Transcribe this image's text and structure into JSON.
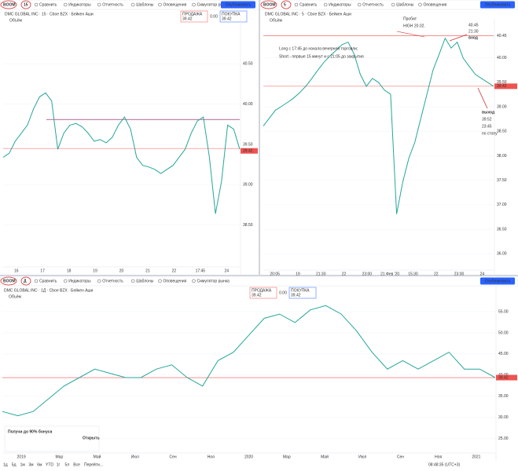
{
  "ui": {
    "panels": [
      {
        "symbol": "BOOM",
        "interval": "15",
        "tools": [
          "Сравнить",
          "Индикаторы",
          "Отчетность",
          "Шаблоны",
          "Оповещения",
          "Симулятор рынка"
        ],
        "publish": "Опубликовать",
        "header": "DMC GLOBAL INC · 15 · Cboe BZX · Бейкен Аши",
        "sell_label": "ПРОДАЖА",
        "sell": "39.42",
        "spread": "0.00",
        "buy_label": "ПОКУПКА",
        "buy": "39.42",
        "volume": "Объём"
      },
      {
        "symbol": "BOOM",
        "interval": "5",
        "tools": [
          "Сравнить",
          "Индикаторы",
          "Отчетность",
          "Шаблоны",
          "Оповещения"
        ],
        "publish": "Опубликовать",
        "header": "DMC GLOBAL INC · 5 · Cboe BZX · Бейкен Аши",
        "volume": "Объём"
      },
      {
        "symbol": "BOOM",
        "interval": "Д",
        "tools": [
          "Сравнить",
          "Индикаторы",
          "Отчетность",
          "Шаблоны",
          "Оповещения",
          "Симулятор рынка"
        ],
        "publish": "Опубликовать",
        "header": "DMC GLOBAL INC · 1Д · Cboe BZX · Бейкен Аши",
        "sell_label": "ПРОДАЖА",
        "sell": "39.42",
        "spread": "0.00",
        "buy_label": "ПОКУПКА",
        "buy": "39.42",
        "volume": "Объём"
      }
    ],
    "bottom_bar": [
      "1д",
      "5д",
      "1м",
      "3м",
      "6м",
      "YTD",
      "1г",
      "5л",
      "Все",
      "Перейти..."
    ],
    "clock": "08:48:35 (UTC+3)",
    "ad": {
      "title": "Получи до 90% бонуса",
      "button": "Открыть"
    }
  },
  "chart_data": [
    {
      "type": "line",
      "color": "#26a69a",
      "values": [
        39.34,
        39.39,
        39.54,
        39.64,
        39.74,
        39.94,
        40.09,
        40.14,
        40.04,
        39.44,
        39.64,
        39.74,
        39.76,
        39.72,
        39.64,
        39.54,
        39.56,
        39.52,
        39.59,
        39.74,
        39.84,
        39.69,
        39.34,
        39.24,
        39.22,
        39.19,
        39.14,
        39.19,
        39.24,
        39.34,
        39.44,
        39.64,
        39.79,
        39.84,
        39.34,
        38.64,
        39.04,
        39.74,
        39.69,
        39.44
      ],
      "x_labels": [
        "16",
        "17",
        "18",
        "19",
        "20",
        "21",
        "22",
        "17:45",
        "24"
      ],
      "ylim": [
        38.0,
        41.0
      ],
      "yticks": [
        {
          "value": 38.5,
          "label": "38.50"
        },
        {
          "value": 39,
          "label": "39.00"
        },
        {
          "value": 39.5,
          "label": "39.50"
        },
        {
          "value": 40,
          "label": "40.00"
        },
        {
          "value": 40.5,
          "label": "40.50"
        }
      ],
      "hlines": [
        {
          "value": 39.81,
          "color": "#880e4f"
        },
        {
          "value": 39.45,
          "color": "#ef5350"
        }
      ],
      "price_label": 39.42,
      "grid": true
    },
    {
      "type": "line",
      "color": "#26a69a",
      "values": [
        38.61,
        38.77,
        38.93,
        39.01,
        39.09,
        39.18,
        39.29,
        39.42,
        39.58,
        39.75,
        39.91,
        40.04,
        40.15,
        40.27,
        40.32,
        40.07,
        39.66,
        39.42,
        39.58,
        39.5,
        39.34,
        39.26,
        36.81,
        37.46,
        37.95,
        38.28,
        38.77,
        39.26,
        39.75,
        40.07,
        40.4,
        40.2,
        40.32,
        39.99,
        39.82,
        39.66,
        39.58,
        39.5,
        39.42
      ],
      "x_labels": [
        "20:05",
        "19",
        "21:30",
        "22",
        "23:00",
        "21 Фев '20",
        "15:30",
        "22",
        "23:00",
        "24"
      ],
      "ylim": [
        35.7,
        40.7
      ],
      "yticks": [
        {
          "value": 36,
          "label": "36.00"
        },
        {
          "value": 36.5,
          "label": "36.50"
        },
        {
          "value": 37,
          "label": "37.00"
        },
        {
          "value": 37.5,
          "label": "37.50"
        },
        {
          "value": 38,
          "label": "38.00"
        },
        {
          "value": 38.5,
          "label": "38.50"
        },
        {
          "value": 39,
          "label": "39.00"
        },
        {
          "value": 39.5,
          "label": "39.50"
        },
        {
          "value": 40,
          "label": "40.00"
        },
        {
          "value": 40.45,
          "label": "40.45"
        }
      ],
      "hlines": [
        {
          "value": 40.45,
          "color": "#ef5350"
        },
        {
          "value": 39.42,
          "color": "#ef5350"
        }
      ],
      "price_label": 39.42,
      "grid": true,
      "annotations": [
        "Long с 17:45 до начала вечерней торговли;",
        "Short - первые 15 минут и с 21:05 до закрытия",
        "Пробит",
        "HIGH 20.02.",
        "40.45",
        "21:30",
        "вход",
        "выход",
        "39:52",
        "23:45",
        "по стопу"
      ]
    },
    {
      "type": "line",
      "color": "#26a69a",
      "values": [
        31.42,
        30.42,
        31.42,
        34.42,
        37.42,
        39.42,
        41.42,
        40.42,
        39.42,
        39.42,
        41.42,
        42.42,
        39.42,
        37.42,
        43.42,
        45.42,
        49.42,
        53.42,
        54.42,
        52.42,
        55.42,
        56.42,
        54.42,
        50.42,
        45.42,
        41.42,
        43.42,
        41.42,
        43.42,
        45.42,
        41.42,
        41.42,
        39.42
      ],
      "x_labels": [
        "2019",
        "Мар",
        "Май",
        "Июл",
        "Сен",
        "Ноя",
        "2020",
        "Мар",
        "Май",
        "Июл",
        "Сен",
        "Ноя",
        "2021"
      ],
      "ylim": [
        22,
        60
      ],
      "yticks": [
        {
          "value": 25,
          "label": "25.00"
        },
        {
          "value": 30,
          "label": "30.00"
        },
        {
          "value": 35,
          "label": "35.00"
        },
        {
          "value": 40,
          "label": "40.00"
        },
        {
          "value": 45,
          "label": "45.00"
        },
        {
          "value": 50,
          "label": "50.00"
        },
        {
          "value": 55,
          "label": "55.00"
        }
      ],
      "hlines": [
        {
          "value": 39.42,
          "color": "#ef5350"
        }
      ],
      "price_label": 39.42,
      "grid": true
    }
  ]
}
